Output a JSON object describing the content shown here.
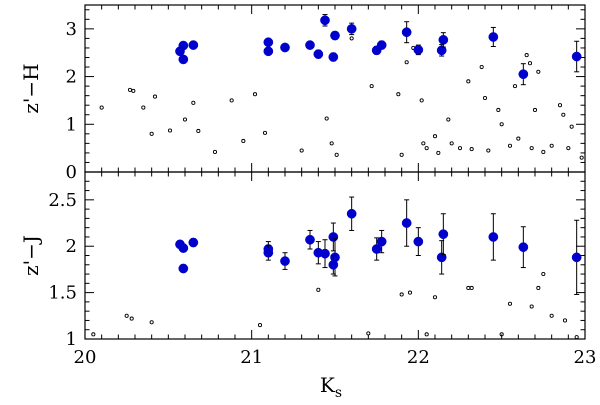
{
  "chart_data": [
    {
      "type": "scatter",
      "panel": "top",
      "ylabel": "z'−H",
      "xlim": [
        20,
        23
      ],
      "ylim": [
        0,
        3.5
      ],
      "yticks": [
        0,
        1,
        2,
        3
      ],
      "ytick_labels": [
        "0",
        "1",
        "2",
        "3"
      ],
      "series": [
        {
          "kind": "detected",
          "color": "#0000cc",
          "points": [
            {
              "x": 20.57,
              "y": 2.53,
              "err": 0.07
            },
            {
              "x": 20.59,
              "y": 2.65,
              "err": 0.07
            },
            {
              "x": 20.59,
              "y": 2.36,
              "err": 0.07
            },
            {
              "x": 20.65,
              "y": 2.66,
              "err": 0.07
            },
            {
              "x": 21.1,
              "y": 2.72,
              "err": 0.07
            },
            {
              "x": 21.1,
              "y": 2.53,
              "err": 0.07
            },
            {
              "x": 21.2,
              "y": 2.61,
              "err": 0.07
            },
            {
              "x": 21.35,
              "y": 2.66,
              "err": 0.07
            },
            {
              "x": 21.4,
              "y": 2.47,
              "err": 0.08
            },
            {
              "x": 21.44,
              "y": 3.18,
              "err": 0.12
            },
            {
              "x": 21.49,
              "y": 2.41,
              "err": 0.08
            },
            {
              "x": 21.5,
              "y": 2.86,
              "err": 0.08
            },
            {
              "x": 21.6,
              "y": 3.0,
              "err": 0.12
            },
            {
              "x": 21.75,
              "y": 2.55,
              "err": 0.08
            },
            {
              "x": 21.78,
              "y": 2.66,
              "err": 0.08
            },
            {
              "x": 21.93,
              "y": 2.93,
              "err": 0.22
            },
            {
              "x": 22.0,
              "y": 2.56,
              "err": 0.1
            },
            {
              "x": 22.14,
              "y": 2.55,
              "err": 0.12
            },
            {
              "x": 22.15,
              "y": 2.77,
              "err": 0.15
            },
            {
              "x": 22.45,
              "y": 2.83,
              "err": 0.2
            },
            {
              "x": 22.63,
              "y": 2.05,
              "err": 0.22
            },
            {
              "x": 22.95,
              "y": 2.42,
              "err": 0.32
            }
          ]
        },
        {
          "kind": "field",
          "color": "#000000",
          "points": [
            {
              "x": 20.1,
              "y": 1.35
            },
            {
              "x": 20.27,
              "y": 1.72
            },
            {
              "x": 20.29,
              "y": 1.7
            },
            {
              "x": 20.35,
              "y": 1.35
            },
            {
              "x": 20.42,
              "y": 1.58
            },
            {
              "x": 20.4,
              "y": 0.8
            },
            {
              "x": 20.51,
              "y": 0.87
            },
            {
              "x": 20.6,
              "y": 1.1
            },
            {
              "x": 20.65,
              "y": 1.45
            },
            {
              "x": 20.68,
              "y": 0.86
            },
            {
              "x": 20.78,
              "y": 0.42
            },
            {
              "x": 20.88,
              "y": 1.5
            },
            {
              "x": 20.95,
              "y": 0.65
            },
            {
              "x": 21.02,
              "y": 1.63
            },
            {
              "x": 21.08,
              "y": 0.82
            },
            {
              "x": 21.3,
              "y": 0.45
            },
            {
              "x": 21.45,
              "y": 1.12
            },
            {
              "x": 21.48,
              "y": 0.6
            },
            {
              "x": 21.51,
              "y": 0.36
            },
            {
              "x": 21.6,
              "y": 2.8
            },
            {
              "x": 21.72,
              "y": 1.8
            },
            {
              "x": 21.88,
              "y": 1.63
            },
            {
              "x": 21.9,
              "y": 0.36
            },
            {
              "x": 21.93,
              "y": 2.3
            },
            {
              "x": 21.97,
              "y": 2.6
            },
            {
              "x": 22.02,
              "y": 1.5
            },
            {
              "x": 22.03,
              "y": 0.6
            },
            {
              "x": 22.05,
              "y": 0.5
            },
            {
              "x": 22.1,
              "y": 0.75
            },
            {
              "x": 22.12,
              "y": 0.4
            },
            {
              "x": 22.18,
              "y": 1.1
            },
            {
              "x": 22.2,
              "y": 0.6
            },
            {
              "x": 22.25,
              "y": 0.5
            },
            {
              "x": 22.3,
              "y": 1.9
            },
            {
              "x": 22.32,
              "y": 0.48
            },
            {
              "x": 22.38,
              "y": 2.2
            },
            {
              "x": 22.4,
              "y": 1.55
            },
            {
              "x": 22.42,
              "y": 0.45
            },
            {
              "x": 22.48,
              "y": 1.3
            },
            {
              "x": 22.5,
              "y": 1.0
            },
            {
              "x": 22.55,
              "y": 0.55
            },
            {
              "x": 22.58,
              "y": 1.8
            },
            {
              "x": 22.6,
              "y": 0.7
            },
            {
              "x": 22.65,
              "y": 2.45
            },
            {
              "x": 22.67,
              "y": 2.28
            },
            {
              "x": 22.68,
              "y": 0.5
            },
            {
              "x": 22.7,
              "y": 1.3
            },
            {
              "x": 22.72,
              "y": 2.1
            },
            {
              "x": 22.75,
              "y": 0.42
            },
            {
              "x": 22.8,
              "y": 0.55
            },
            {
              "x": 22.85,
              "y": 1.4
            },
            {
              "x": 22.87,
              "y": 1.2
            },
            {
              "x": 22.9,
              "y": 0.5
            },
            {
              "x": 22.92,
              "y": 0.95
            },
            {
              "x": 22.98,
              "y": 0.3
            }
          ]
        }
      ]
    },
    {
      "type": "scatter",
      "panel": "bottom",
      "ylabel": "z'−J",
      "xlabel": "K",
      "xlabel_sub": "s",
      "xlim": [
        20,
        23
      ],
      "ylim": [
        1,
        2.8
      ],
      "xticks": [
        20,
        21,
        22,
        23
      ],
      "xtick_labels": [
        "20",
        "21",
        "22",
        "23"
      ],
      "yticks": [
        1,
        1.5,
        2,
        2.5
      ],
      "ytick_labels": [
        "1",
        "1.5",
        "2",
        "2.5"
      ],
      "series": [
        {
          "kind": "detected",
          "color": "#0000cc",
          "points": [
            {
              "x": 20.57,
              "y": 2.02,
              "err": 0.04
            },
            {
              "x": 20.59,
              "y": 1.98,
              "err": 0.04
            },
            {
              "x": 20.59,
              "y": 1.76,
              "err": 0.04
            },
            {
              "x": 20.65,
              "y": 2.04,
              "err": 0.04
            },
            {
              "x": 21.1,
              "y": 1.97,
              "err": 0.08
            },
            {
              "x": 21.1,
              "y": 1.93,
              "err": 0.08
            },
            {
              "x": 21.2,
              "y": 1.84,
              "err": 0.09
            },
            {
              "x": 21.35,
              "y": 2.07,
              "err": 0.1
            },
            {
              "x": 21.4,
              "y": 1.93,
              "err": 0.12
            },
            {
              "x": 21.44,
              "y": 1.92,
              "err": 0.15
            },
            {
              "x": 21.49,
              "y": 2.1,
              "err": 0.15
            },
            {
              "x": 21.5,
              "y": 1.88,
              "err": 0.2
            },
            {
              "x": 21.49,
              "y": 1.8,
              "err": 0.1
            },
            {
              "x": 21.6,
              "y": 2.35,
              "err": 0.18
            },
            {
              "x": 21.75,
              "y": 1.97,
              "err": 0.12
            },
            {
              "x": 21.78,
              "y": 2.05,
              "err": 0.12
            },
            {
              "x": 21.93,
              "y": 2.25,
              "err": 0.25
            },
            {
              "x": 22.0,
              "y": 2.05,
              "err": 0.15
            },
            {
              "x": 22.14,
              "y": 1.88,
              "err": 0.18
            },
            {
              "x": 22.15,
              "y": 2.13,
              "err": 0.22
            },
            {
              "x": 22.45,
              "y": 2.1,
              "err": 0.25
            },
            {
              "x": 22.63,
              "y": 1.99,
              "err": 0.22
            },
            {
              "x": 22.95,
              "y": 1.88,
              "err": 0.4
            }
          ]
        },
        {
          "kind": "field",
          "color": "#000000",
          "points": [
            {
              "x": 20.05,
              "y": 1.05
            },
            {
              "x": 20.25,
              "y": 1.25
            },
            {
              "x": 20.28,
              "y": 1.22
            },
            {
              "x": 20.4,
              "y": 1.18
            },
            {
              "x": 21.05,
              "y": 1.15
            },
            {
              "x": 21.4,
              "y": 1.53
            },
            {
              "x": 21.7,
              "y": 1.06
            },
            {
              "x": 21.9,
              "y": 1.48
            },
            {
              "x": 21.95,
              "y": 1.5
            },
            {
              "x": 22.05,
              "y": 1.05
            },
            {
              "x": 22.1,
              "y": 1.45
            },
            {
              "x": 22.3,
              "y": 1.55
            },
            {
              "x": 22.32,
              "y": 1.55
            },
            {
              "x": 22.5,
              "y": 1.05
            },
            {
              "x": 22.55,
              "y": 1.38
            },
            {
              "x": 22.68,
              "y": 1.35
            },
            {
              "x": 22.72,
              "y": 1.55
            },
            {
              "x": 22.75,
              "y": 1.7
            },
            {
              "x": 22.8,
              "y": 1.25
            },
            {
              "x": 22.88,
              "y": 1.2
            },
            {
              "x": 22.95,
              "y": 1.02
            }
          ]
        }
      ]
    }
  ]
}
